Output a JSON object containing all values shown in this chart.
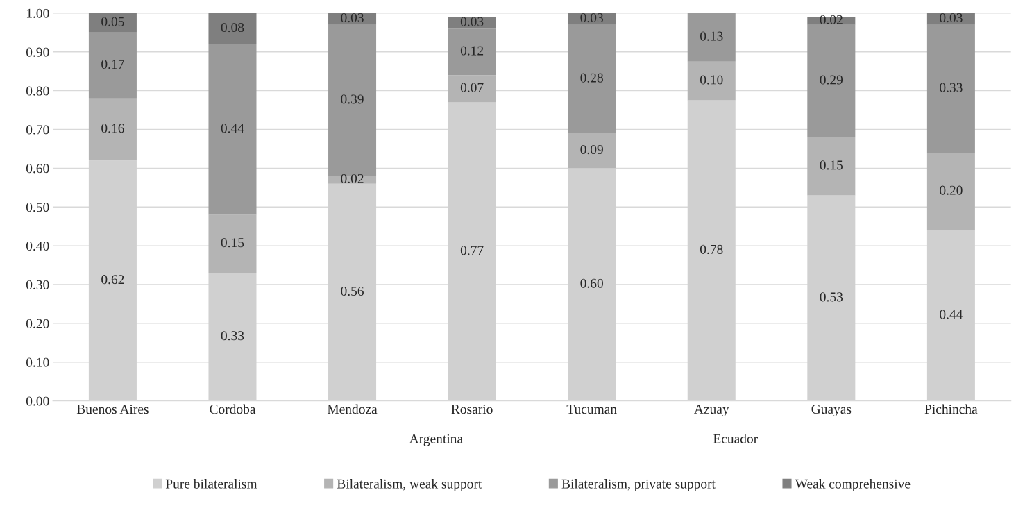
{
  "chart_data": {
    "type": "bar",
    "stacked": true,
    "categories": [
      "Buenos Aires",
      "Cordoba",
      "Mendoza",
      "Rosario",
      "Tucuman",
      "Azuay",
      "Guayas",
      "Pichincha"
    ],
    "series": [
      {
        "name": "Pure bilateralism",
        "color": "#d0d0d0",
        "values": [
          0.62,
          0.33,
          0.56,
          0.77,
          0.6,
          0.775,
          0.53,
          0.44
        ],
        "value_labels": [
          "0.62",
          "0.33",
          "0.56",
          "0.77",
          "0.60",
          "0.78",
          "0.53",
          "0.44"
        ]
      },
      {
        "name": "Bilateralism, weak support",
        "color": "#b4b4b4",
        "values": [
          0.16,
          0.15,
          0.02,
          0.07,
          0.09,
          0.1,
          0.15,
          0.2
        ],
        "value_labels": [
          "0.16",
          "0.15",
          "0.02",
          "0.07",
          "0.09",
          "0.10",
          "0.15",
          "0.20"
        ]
      },
      {
        "name": "Bilateralism, private support",
        "color": "#9a9a9a",
        "values": [
          0.17,
          0.44,
          0.39,
          0.12,
          0.28,
          0.125,
          0.29,
          0.33
        ],
        "value_labels": [
          "0.17",
          "0.44",
          "0.39",
          "0.12",
          "0.28",
          "0.13",
          "0.29",
          "0.33"
        ]
      },
      {
        "name": "Weak comprehensive",
        "color": "#7f7f7f",
        "values": [
          0.05,
          0.08,
          0.03,
          0.03,
          0.03,
          0,
          0.02,
          0.03
        ],
        "value_labels": [
          "0.05",
          "0.08",
          "0.03",
          "0.03",
          "0.03",
          null,
          "0.02",
          "0.03"
        ]
      }
    ],
    "ylim": [
      0,
      1
    ],
    "yticks": [
      {
        "value": 0,
        "label": "0.00"
      },
      {
        "value": 0.1,
        "label": "0.10"
      },
      {
        "value": 0.2,
        "label": "0.20"
      },
      {
        "value": 0.3,
        "label": "0.30"
      },
      {
        "value": 0.4,
        "label": "0.40"
      },
      {
        "value": 0.5,
        "label": "0.50"
      },
      {
        "value": 0.6,
        "label": "0.60"
      },
      {
        "value": 0.7,
        "label": "0.70"
      },
      {
        "value": 0.8,
        "label": "0.80"
      },
      {
        "value": 0.9,
        "label": "0.90"
      },
      {
        "value": 1,
        "label": "1.00"
      }
    ],
    "grid": "y",
    "legend": "bottom",
    "annotations": [
      "Argentina",
      "Ecuador"
    ]
  }
}
